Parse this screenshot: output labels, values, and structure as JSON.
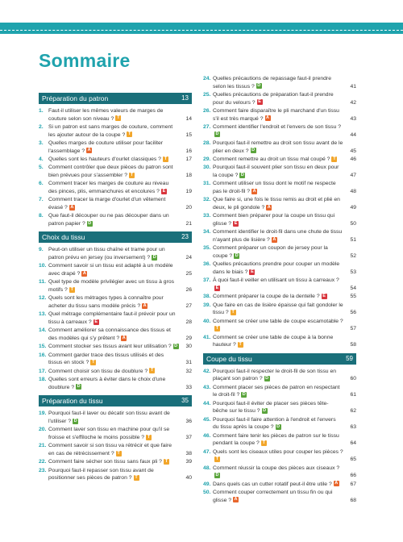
{
  "header": {
    "title": "Sommaire"
  },
  "columns": [
    {
      "sections": [
        {
          "title": "Préparation du patron",
          "page": "13",
          "entries": [
            {
              "number": "1.",
              "text": "Faut-il utiliser les mêmes valeurs de marges de couture selon son niveau ?",
              "level": "T",
              "page": "14"
            },
            {
              "number": "2.",
              "text": "Si un patron est sans marges de couture, comment les ajouter autour de la coupe ?",
              "level": "T",
              "page": "15"
            },
            {
              "number": "3.",
              "text": "Quelles marges de couture utiliser pour faciliter l'assemblage ?",
              "level": "A",
              "page": "16"
            },
            {
              "number": "4.",
              "text": "Quelles sont les hauteurs d'ourlet classiques ?",
              "level": "T",
              "page": "17"
            },
            {
              "number": "5.",
              "text": "Comment contrôler que deux pièces du patron sont bien prévues pour s'assembler ?",
              "level": "T",
              "page": "18"
            },
            {
              "number": "6.",
              "text": "Comment tracer les marges de couture au niveau des pinces, plis, emmanchures et encolures ?",
              "level": "E",
              "page": "19"
            },
            {
              "number": "7.",
              "text": "Comment tracer la marge d'ourlet d'un vêtement évasé ?",
              "level": "A",
              "page": "20"
            },
            {
              "number": "8.",
              "text": "Que faut-il découper ou ne pas découper dans un patron papier ?",
              "level": "D",
              "page": "21"
            }
          ]
        },
        {
          "title": "Choix du tissu",
          "page": "23",
          "entries": [
            {
              "number": "9.",
              "text": "Peut-on utiliser un tissu chaîne et trame pour un patron prévu en jersey (ou inversement) ?",
              "level": "D",
              "page": "24"
            },
            {
              "number": "10.",
              "text": "Comment savoir si un tissu est adapté à un modèle avec drapé ?",
              "level": "A",
              "page": "25"
            },
            {
              "number": "11.",
              "text": "Quel type de modèle privilégier avec un tissu à gros motifs ?",
              "level": "T",
              "page": "26"
            },
            {
              "number": "12.",
              "text": "Quels sont les métrages types à connaître pour acheter du tissu sans modèle précis ?",
              "level": "A",
              "page": "27"
            },
            {
              "number": "13.",
              "text": "Quel métrage complémentaire faut-il prévoir pour un tissu à carreaux ?",
              "level": "E",
              "page": "28"
            },
            {
              "number": "14.",
              "text": "Comment améliorer sa connaissance des tissus et des modèles qui s'y prêtent ?",
              "level": "A",
              "page": "29"
            },
            {
              "number": "15.",
              "text": "Comment stocker ses tissus avant leur utilisation ?",
              "level": "D",
              "page": "30"
            },
            {
              "number": "16.",
              "text": "Comment garder trace des tissus utilisés et des tissus en stock ?",
              "level": "T",
              "page": "31"
            },
            {
              "number": "17.",
              "text": "Comment choisir son tissu de doublure ?",
              "level": "T",
              "page": "32"
            },
            {
              "number": "18.",
              "text": "Quelles sont erreurs à éviter dans le choix d'une doublure ?",
              "level": "D",
              "page": "33"
            }
          ]
        },
        {
          "title": "Préparation du tissu",
          "page": "35",
          "entries": [
            {
              "number": "19.",
              "text": "Pourquoi faut-il laver ou décatir son tissu avant de l'utiliser ?",
              "level": "D",
              "page": "36"
            },
            {
              "number": "20.",
              "text": "Comment laver son tissu en machine pour qu'il se froisse et s'effiloche le moins possible ?",
              "level": "T",
              "page": "37"
            },
            {
              "number": "21.",
              "text": "Comment savoir si son tissu va rétrécir et que faire en cas de rétrécissement ?",
              "level": "T",
              "page": "38"
            },
            {
              "number": "22.",
              "text": "Comment faire sécher son tissu sans faux pli ?",
              "level": "T",
              "page": "39"
            },
            {
              "number": "23.",
              "text": "Pourquoi faut-il repasser son tissu avant de positionner ses pièces de patron ?",
              "level": "T",
              "page": "40"
            }
          ]
        }
      ]
    },
    {
      "sections": [
        {
          "entries": [
            {
              "number": "24.",
              "text": "Quelles précautions de repassage faut-il prendre selon les tissus ?",
              "level": "D",
              "page": "41"
            },
            {
              "number": "25.",
              "text": "Quelles précautions de préparation faut-il prendre pour du velours ?",
              "level": "E",
              "page": "42"
            },
            {
              "number": "26.",
              "text": "Comment faire disparaître le pli marchand d'un tissu s'il est très marqué ?",
              "level": "A",
              "page": "43"
            },
            {
              "number": "27.",
              "text": "Comment identifier l'endroit et l'envers de son tissu ?",
              "level": "D",
              "page": "44"
            },
            {
              "number": "28.",
              "text": "Pourquoi faut-il remettre au droit son tissu avant de le plier en deux ?",
              "level": "D",
              "page": "45"
            },
            {
              "number": "29.",
              "text": "Comment remettre au droit un tissu mal coupé ?",
              "level": "T",
              "page": "46"
            },
            {
              "number": "30.",
              "text": "Pourquoi faut-il souvent plier son tissu en deux pour la coupe ?",
              "level": "D",
              "page": "47"
            },
            {
              "number": "31.",
              "text": "Comment utiliser un tissu dont le motif ne respecte pas le droit-fil ?",
              "level": "A",
              "page": "48"
            },
            {
              "number": "32.",
              "text": "Que faire si, une fois le tissu remis au droit et plié en deux, le pli gondole ?",
              "level": "A",
              "page": "49"
            },
            {
              "number": "33.",
              "text": "Comment bien préparer pour la coupe un tissu qui glisse ?",
              "level": "E",
              "page": "50"
            },
            {
              "number": "34.",
              "text": "Comment identifier le droit-fil dans une chute de tissu n'ayant plus de lisière ?",
              "level": "A",
              "page": "51"
            },
            {
              "number": "35.",
              "text": "Comment préparer un coupon de jersey pour la coupe ?",
              "level": "D",
              "page": "52"
            },
            {
              "number": "36.",
              "text": "Quelles précautions prendre pour couper un modèle dans le biais ?",
              "level": "E",
              "page": "53"
            },
            {
              "number": "37.",
              "text": "À quoi faut-il veiller en utilisant un tissu à carreaux ?",
              "level": "E",
              "page": "54"
            },
            {
              "number": "38.",
              "text": "Comment préparer la coupe de la dentelle ?",
              "level": "E",
              "page": "55"
            },
            {
              "number": "39.",
              "text": "Que faire en cas de lisière épaisse qui fait gondoler le tissu ?",
              "level": "T",
              "page": "56"
            },
            {
              "number": "40.",
              "text": "Comment se créer une table de coupe escamotable ?",
              "level": "T",
              "page": "57"
            },
            {
              "number": "41.",
              "text": "Comment se créer une table de coupe à la bonne hauteur ?",
              "level": "T",
              "page": "58"
            }
          ]
        },
        {
          "title": "Coupe du tissu",
          "page": "59",
          "entries": [
            {
              "number": "42.",
              "text": "Pourquoi faut-il respecter le droit-fil de son tissu en plaçant son patron ?",
              "level": "D",
              "page": "60"
            },
            {
              "number": "43.",
              "text": "Comment placer ses pièces de patron en respectant le droit-fil ?",
              "level": "D",
              "page": "61"
            },
            {
              "number": "44.",
              "text": "Pourquoi faut-il éviter de placer ses pièces tête-bêche sur le tissu ?",
              "level": "D",
              "page": "62"
            },
            {
              "number": "45.",
              "text": "Pourquoi faut-il faire attention à l'endroit et l'envers du tissu après la coupe ?",
              "level": "D",
              "page": "63"
            },
            {
              "number": "46.",
              "text": "Comment faire tenir les pièces de patron sur le tissu pendant la coupe ?",
              "level": "T",
              "page": "64"
            },
            {
              "number": "47.",
              "text": "Quels sont les ciseaux utiles pour couper les pièces ?",
              "level": "T",
              "page": "65"
            },
            {
              "number": "48.",
              "text": "Comment réussir la coupe des pièces aux ciseaux ?",
              "level": "D",
              "page": "66"
            },
            {
              "number": "49.",
              "text": "Dans quels cas un cutter rotatif peut-il être utile ?",
              "level": "A",
              "page": "67"
            },
            {
              "number": "50.",
              "text": "Comment couper correctement un tissu fin ou qui glisse ?",
              "level": "A",
              "page": "68"
            }
          ]
        }
      ]
    }
  ]
}
